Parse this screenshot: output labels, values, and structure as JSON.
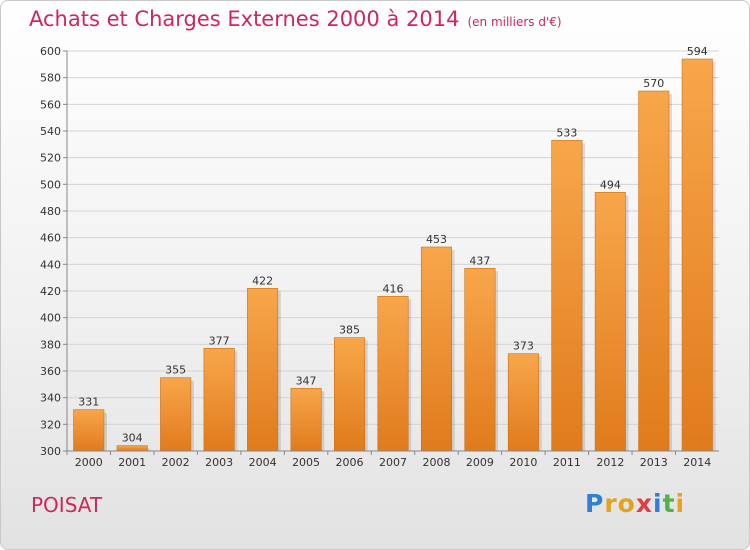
{
  "chart_data": {
    "type": "bar",
    "title": "Achats et Charges Externes 2000 à 2014",
    "subtitle": "(en milliers d'€)",
    "categories": [
      "2000",
      "2001",
      "2002",
      "2003",
      "2004",
      "2005",
      "2006",
      "2007",
      "2008",
      "2009",
      "2010",
      "2011",
      "2012",
      "2013",
      "2014"
    ],
    "values": [
      331,
      304,
      355,
      377,
      422,
      347,
      385,
      416,
      453,
      437,
      373,
      533,
      494,
      570,
      594
    ],
    "ylim": [
      300,
      600
    ],
    "yticks": [
      300,
      320,
      340,
      360,
      380,
      400,
      420,
      440,
      460,
      480,
      500,
      520,
      540,
      560,
      580,
      600
    ],
    "grid": true,
    "colors": {
      "bar_light": "#f8a64b",
      "bar_dark": "#e07b1c",
      "title": "#d2265a"
    }
  },
  "footer": {
    "place": "POISAT",
    "brand_letters": [
      "P",
      "r",
      "o",
      "x",
      "i",
      "t",
      "i"
    ],
    "brand_colors": [
      "#2f7fd4",
      "#e8a21a",
      "#e8a21a",
      "#e23d3d",
      "#2f7fd4",
      "#56b04a",
      "#e8a21a"
    ]
  }
}
